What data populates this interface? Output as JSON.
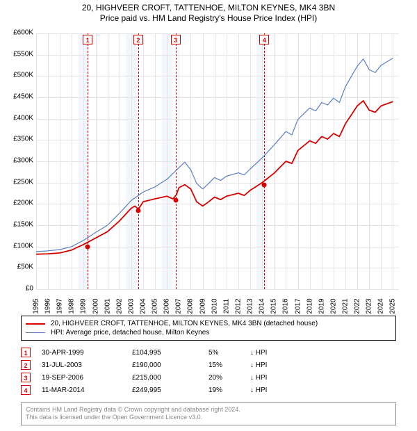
{
  "title_line1": "20, HIGHVEER CROFT, TATTENHOE, MILTON KEYNES, MK4 3BN",
  "title_line2": "Price paid vs. HM Land Registry's House Price Index (HPI)",
  "colors": {
    "series_property": "#d70000",
    "series_hpi": "#5a7fc4",
    "grid": "#e5e5e5",
    "background": "#ffffff",
    "shade": "#f3f7fb",
    "footer_border": "#888888",
    "footer_text": "#888888"
  },
  "chart": {
    "type": "line",
    "x_axis": {
      "min": 1995,
      "max": 2025.5,
      "ticks": [
        1995,
        1996,
        1997,
        1998,
        1999,
        2000,
        2001,
        2002,
        2003,
        2004,
        2005,
        2006,
        2007,
        2008,
        2009,
        2010,
        2011,
        2012,
        2013,
        2014,
        2015,
        2016,
        2017,
        2018,
        2019,
        2020,
        2021,
        2022,
        2023,
        2024,
        2025
      ]
    },
    "y_axis": {
      "min": 0,
      "max": 600000,
      "ticks": [
        0,
        50000,
        100000,
        150000,
        200000,
        250000,
        300000,
        350000,
        400000,
        450000,
        500000,
        550000,
        600000
      ]
    },
    "ytick_labels": [
      "£0",
      "£50K",
      "£100K",
      "£150K",
      "£200K",
      "£250K",
      "£300K",
      "£350K",
      "£400K",
      "£450K",
      "£500K",
      "£550K",
      "£600K"
    ],
    "shade_years": [
      1999,
      2003,
      2006,
      2014
    ],
    "shade_half_width_years": 0.45,
    "series_property": [
      [
        1995,
        82000
      ],
      [
        1996,
        83000
      ],
      [
        1997,
        85000
      ],
      [
        1998,
        92000
      ],
      [
        1999,
        105000
      ],
      [
        2000,
        120000
      ],
      [
        2001,
        135000
      ],
      [
        2002,
        160000
      ],
      [
        2003,
        190000
      ],
      [
        2003.3,
        195000
      ],
      [
        2003.6,
        188000
      ],
      [
        2004,
        205000
      ],
      [
        2005,
        212000
      ],
      [
        2006,
        218000
      ],
      [
        2006.5,
        212000
      ],
      [
        2006.8,
        222000
      ],
      [
        2007,
        238000
      ],
      [
        2007.5,
        245000
      ],
      [
        2008,
        235000
      ],
      [
        2008.5,
        205000
      ],
      [
        2009,
        195000
      ],
      [
        2009.5,
        205000
      ],
      [
        2010,
        216000
      ],
      [
        2010.5,
        210000
      ],
      [
        2011,
        218000
      ],
      [
        2012,
        225000
      ],
      [
        2012.5,
        220000
      ],
      [
        2013,
        232000
      ],
      [
        2014,
        250000
      ],
      [
        2015,
        272000
      ],
      [
        2016,
        300000
      ],
      [
        2016.5,
        295000
      ],
      [
        2017,
        325000
      ],
      [
        2018,
        348000
      ],
      [
        2018.5,
        342000
      ],
      [
        2019,
        358000
      ],
      [
        2019.5,
        352000
      ],
      [
        2020,
        365000
      ],
      [
        2020.5,
        358000
      ],
      [
        2021,
        388000
      ],
      [
        2022,
        430000
      ],
      [
        2022.5,
        442000
      ],
      [
        2023,
        420000
      ],
      [
        2023.5,
        415000
      ],
      [
        2024,
        430000
      ],
      [
        2025,
        440000
      ]
    ],
    "series_hpi": [
      [
        1995,
        88000
      ],
      [
        1996,
        90000
      ],
      [
        1997,
        93000
      ],
      [
        1998,
        100000
      ],
      [
        1999,
        115000
      ],
      [
        2000,
        133000
      ],
      [
        2001,
        150000
      ],
      [
        2002,
        178000
      ],
      [
        2003,
        208000
      ],
      [
        2004,
        228000
      ],
      [
        2005,
        240000
      ],
      [
        2006,
        258000
      ],
      [
        2007,
        285000
      ],
      [
        2007.5,
        298000
      ],
      [
        2008,
        280000
      ],
      [
        2008.5,
        248000
      ],
      [
        2009,
        235000
      ],
      [
        2009.5,
        248000
      ],
      [
        2010,
        262000
      ],
      [
        2010.5,
        255000
      ],
      [
        2011,
        265000
      ],
      [
        2012,
        273000
      ],
      [
        2012.5,
        268000
      ],
      [
        2013,
        282000
      ],
      [
        2014,
        308000
      ],
      [
        2015,
        338000
      ],
      [
        2016,
        370000
      ],
      [
        2016.5,
        362000
      ],
      [
        2017,
        398000
      ],
      [
        2018,
        425000
      ],
      [
        2018.5,
        418000
      ],
      [
        2019,
        438000
      ],
      [
        2019.5,
        432000
      ],
      [
        2020,
        448000
      ],
      [
        2020.5,
        438000
      ],
      [
        2021,
        475000
      ],
      [
        2022,
        523000
      ],
      [
        2022.5,
        540000
      ],
      [
        2023,
        515000
      ],
      [
        2023.5,
        508000
      ],
      [
        2024,
        525000
      ],
      [
        2025,
        542000
      ]
    ],
    "transactions": [
      {
        "n": "1",
        "year": 1999.33,
        "price": 104995
      },
      {
        "n": "2",
        "year": 2003.58,
        "price": 190000
      },
      {
        "n": "3",
        "year": 2006.72,
        "price": 215000
      },
      {
        "n": "4",
        "year": 2014.19,
        "price": 249995
      }
    ]
  },
  "legend": {
    "property": "20, HIGHVEER CROFT, TATTENHOE, MILTON KEYNES, MK4 3BN (detached house)",
    "hpi": "HPI: Average price, detached house, Milton Keynes"
  },
  "transactions_table": [
    {
      "n": "1",
      "date": "30-APR-1999",
      "price": "£104,995",
      "delta": "5%",
      "vs": "↓ HPI"
    },
    {
      "n": "2",
      "date": "31-JUL-2003",
      "price": "£190,000",
      "delta": "15%",
      "vs": "↓ HPI"
    },
    {
      "n": "3",
      "date": "19-SEP-2006",
      "price": "£215,000",
      "delta": "20%",
      "vs": "↓ HPI"
    },
    {
      "n": "4",
      "date": "11-MAR-2014",
      "price": "£249,995",
      "delta": "19%",
      "vs": "↓ HPI"
    }
  ],
  "footer_line1": "Contains HM Land Registry data © Crown copyright and database right 2024.",
  "footer_line2": "This data is licensed under the Open Government Licence v3.0."
}
